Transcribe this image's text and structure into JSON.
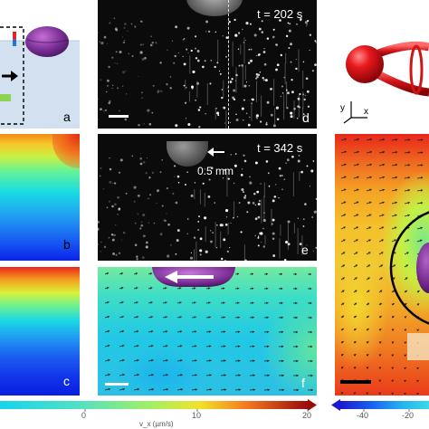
{
  "panels": {
    "a": {
      "label": "a"
    },
    "b": {
      "label": "b"
    },
    "c": {
      "label": "c"
    },
    "d": {
      "label": "d",
      "time": "t = 202 s"
    },
    "e": {
      "label": "e",
      "time": "t = 342 s",
      "scale": "0.5 mm"
    },
    "f": {
      "label": "f"
    },
    "axes_label": {
      "y": "y",
      "x": "x"
    }
  },
  "colorbar_left": {
    "ticks": [
      "0",
      "10",
      "20"
    ],
    "label": "v_x (µm/s)",
    "colors": [
      "#00e5ff",
      "#7fff7f",
      "#ffe600",
      "#ff5500",
      "#8b0000"
    ]
  },
  "colorbar_right": {
    "ticks": [
      "-40",
      "-20"
    ]
  }
}
